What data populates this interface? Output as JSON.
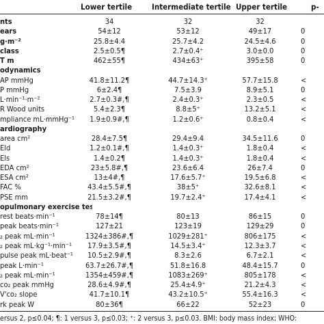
{
  "header": {
    "col1": "Lower tertile",
    "col2": "Intermediate tertile",
    "col3": "Upper tertile",
    "col4": "p-"
  },
  "rows": [
    {
      "label": "nts",
      "bold": true,
      "v1": "34",
      "v2": "32",
      "v3": "32",
      "v4": ""
    },
    {
      "label": "ears",
      "bold": true,
      "v1": "54±12",
      "v2": "53±12",
      "v3": "49±17",
      "v4": "0"
    },
    {
      "label": "g·m⁻²",
      "bold": true,
      "v1": "25.8±4.4",
      "v2": "25.7±4.2",
      "v3": "24.5±4.6",
      "v4": "0"
    },
    {
      "label": "class",
      "bold": true,
      "v1": "2.5±0.5¶",
      "v2": "2.7±0.4⁺",
      "v3": "3.0±0.0",
      "v4": "0"
    },
    {
      "label": "T m",
      "bold": true,
      "v1": "462±55¶",
      "v2": "434±63⁺",
      "v3": "395±58",
      "v4": "0"
    },
    {
      "label": "odynamics",
      "section": true,
      "v1": "",
      "v2": "",
      "v3": "",
      "v4": ""
    },
    {
      "label": "AP mmHg",
      "v1": "41.8±11.2¶",
      "v2": "44.7±14.3⁺",
      "v3": "57.7±15.8",
      "v4": "<"
    },
    {
      "label": "P mmHg",
      "v1": "6±2.4¶",
      "v2": "7.5±3.9",
      "v3": "8.9±5.1",
      "v4": "0"
    },
    {
      "label": "L·min⁻¹·m⁻²",
      "v1": "2.7±0.3#,¶",
      "v2": "2.4±0.3⁺",
      "v3": "2.3±0.5",
      "v4": "<"
    },
    {
      "label": "R Wood units",
      "v1": "5.4±2.3¶",
      "v2": "8.8±5⁺",
      "v3": "13.2±5.1",
      "v4": "<"
    },
    {
      "label": "mpliance mL·mmHg⁻¹",
      "v1": "1.9±0.9#,¶",
      "v2": "1.2±0.6⁺",
      "v3": "0.8±0.4",
      "v4": "<"
    },
    {
      "label": "ardiography",
      "section": true,
      "v1": "",
      "v2": "",
      "v3": "",
      "v4": ""
    },
    {
      "label": "area cm²",
      "v1": "28.4±7.5¶",
      "v2": "29.4±9.4",
      "v3": "34.5±11.6",
      "v4": "0"
    },
    {
      "label": "Eld",
      "v1": "1.2±0.1#,¶",
      "v2": "1.4±0.3⁺",
      "v3": "1.8±0.4",
      "v4": "<"
    },
    {
      "label": "Els",
      "v1": "1.4±0.2¶",
      "v2": "1.4±0.3⁺",
      "v3": "1.8±0.4",
      "v4": "<"
    },
    {
      "label": "EDA cm²",
      "v1": "23±5.8#,¶",
      "v2": "23.6±6.4",
      "v3": "26±7.4",
      "v4": "0"
    },
    {
      "label": "ESA cm²",
      "v1": "13±4#,¶",
      "v2": "17.6±5.7⁺",
      "v3": "19.5±6.8",
      "v4": "<"
    },
    {
      "label": "FAC %",
      "v1": "43.4±5.5#,¶",
      "v2": "38±5⁺",
      "v3": "32.6±8.1",
      "v4": "<"
    },
    {
      "label": "PSE mm",
      "v1": "21.5±3.2#,¶",
      "v2": "19.7±2.4⁺",
      "v3": "17.4±4.1",
      "v4": "<"
    },
    {
      "label": "opulmonary exercise test",
      "section": true,
      "v1": "",
      "v2": "",
      "v3": "",
      "v4": ""
    },
    {
      "label": " rest beats·min⁻¹",
      "v1": "78±14¶",
      "v2": "80±13",
      "v3": "86±15",
      "v4": "0"
    },
    {
      "label": " peak beats·min⁻¹",
      "v1": "127±21",
      "v2": "123±19",
      "v3": "129±29",
      "v4": "0"
    },
    {
      "label": "₂ peak mL·min⁻¹",
      "v1": "1324±386#,¶",
      "v2": "1029±281⁺",
      "v3": "806±175",
      "v4": "<"
    },
    {
      "label": "₂ peak mL·kg⁻¹·min⁻¹",
      "v1": "17.9±3.5#,¶",
      "v2": "14.5±3.4⁺",
      "v3": "12.3±3.7",
      "v4": "<"
    },
    {
      "label": " pulse peak mL·beat⁻¹",
      "v1": "10.5±2.9#,¶",
      "v2": "8.3±2.6",
      "v3": "6.7±2.1",
      "v4": "<"
    },
    {
      "label": " peak L·min⁻¹",
      "v1": "63.7±26.7#,¶",
      "v2": "51.8±16.8",
      "v3": "48.4±15.7",
      "v4": "0"
    },
    {
      "label": "₂ peak mL·min⁻¹",
      "v1": "1354±459#,¶",
      "v2": "1083±269⁺",
      "v3": "805±178",
      "v4": "<"
    },
    {
      "label": "co₂ peak mmHg",
      "v1": "28.6±4.9#,¶",
      "v2": "25.4±4.9⁺",
      "v3": "21.2±4.3",
      "v4": "<"
    },
    {
      "label": "V'co₂ slope",
      "v1": "41.7±10.1¶",
      "v2": "43.2±10.5⁺",
      "v3": "55.4±16.3",
      "v4": "<"
    },
    {
      "label": "rk peak W",
      "v1": "80±36¶",
      "v2": "66±22",
      "v3": "52±23",
      "v4": "0"
    }
  ],
  "footnote": "ersus 2, p≤0.04; ¶: 1 versus 3, p≤0.03; ⁺: 2 versus 3, p≤0.03. BMI: body mass index; WHO:"
}
